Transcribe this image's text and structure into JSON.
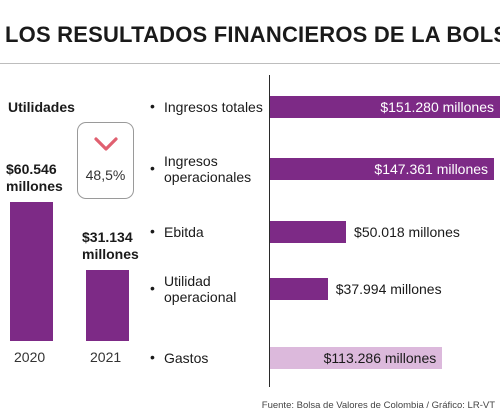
{
  "title": "LOS RESULTADOS FINANCIEROS DE LA BOLSA",
  "source": "Fuente: Bolsa de Valores de Colombia / Gráfico: LR-VT",
  "colors": {
    "primary": "#7d2a86",
    "light": "#dcb9dc",
    "decline": "#e06070"
  },
  "chart_data": [
    {
      "type": "bar",
      "title": "Utilidades",
      "categories": [
        "2020",
        "2021"
      ],
      "values": [
        60546,
        31134
      ],
      "value_labels": [
        "$60.546 millones",
        "$31.134 millones"
      ],
      "unit": "millones",
      "change": {
        "label": "48,5%",
        "direction": "down",
        "icon": "chevron-down-icon"
      }
    },
    {
      "type": "bar",
      "orientation": "horizontal",
      "categories": [
        "Ingresos totales",
        "Ingresos operacionales",
        "Ebitda",
        "Utilidad operacional",
        "Gastos"
      ],
      "values": [
        151280,
        147361,
        50018,
        37994,
        113286
      ],
      "value_labels": [
        "$151.280 millones",
        "$147.361 millones",
        "$50.018 millones",
        "$37.994 millones",
        "$113.286 millones"
      ],
      "unit": "millones",
      "bar_colors": [
        "#7d2a86",
        "#7d2a86",
        "#7d2a86",
        "#7d2a86",
        "#dcb9dc"
      ]
    }
  ]
}
